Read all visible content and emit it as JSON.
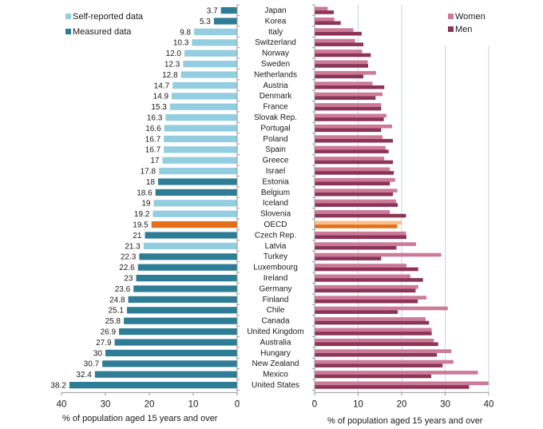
{
  "chart_data": [
    {
      "type": "bar",
      "orientation": "horizontal",
      "direction": "right-to-left",
      "title": "",
      "xlabel": "% of population aged 15 years and over",
      "ylabel": "",
      "xlim": [
        0,
        40
      ],
      "xticks": [
        "40",
        "30",
        "20",
        "10",
        "0"
      ],
      "legend": {
        "position": "top-left",
        "entries": [
          {
            "key": "self",
            "label": "Self-reported data",
            "color": "#92cde0"
          },
          {
            "key": "measured",
            "label": "Measured data",
            "color": "#2e7d96"
          }
        ]
      },
      "highlight_color": "#e56f17",
      "categories": [
        "Japan",
        "Korea",
        "Italy",
        "Switzerland",
        "Norway",
        "Sweden",
        "Netherlands",
        "Austria",
        "Denmark",
        "France",
        "Slovak Rep.",
        "Portugal",
        "Poland",
        "Spain",
        "Greece",
        "Israel",
        "Estonia",
        "Belgium",
        "Iceland",
        "Slovenia",
        "OECD",
        "Czech Rep.",
        "Latvia",
        "Turkey",
        "Luxembourg",
        "Ireland",
        "Germany",
        "Finland",
        "Chile",
        "Canada",
        "United Kingdom",
        "Australia",
        "Hungary",
        "New Zealand",
        "Mexico",
        "United States"
      ],
      "values": [
        3.7,
        5.3,
        9.8,
        10.3,
        12.0,
        12.3,
        12.8,
        14.7,
        14.9,
        15.3,
        16.3,
        16.6,
        16.7,
        16.7,
        17,
        17.8,
        18,
        18.6,
        19,
        19.2,
        19.5,
        21,
        21.3,
        22.3,
        22.6,
        23,
        23.6,
        24.8,
        25.1,
        25.8,
        26.9,
        27.9,
        30,
        30.7,
        32.4,
        38.2
      ],
      "value_labels": [
        "3.7",
        "5.3",
        "9.8",
        "10.3",
        "12.0",
        "12.3",
        "12.8",
        "14.7",
        "14.9",
        "15.3",
        "16.3",
        "16.6",
        "16.7",
        "16.7",
        "17",
        "17.8",
        "18",
        "18.6",
        "19",
        "19.2",
        "19.5",
        "21",
        "21.3",
        "22.3",
        "22.6",
        "23",
        "23.6",
        "24.8",
        "25.1",
        "25.8",
        "26.9",
        "27.9",
        "30",
        "30.7",
        "32.4",
        "38.2"
      ],
      "data_type": [
        "measured",
        "measured",
        "self",
        "self",
        "self",
        "self",
        "self",
        "self",
        "self",
        "self",
        "self",
        "self",
        "self",
        "self",
        "self",
        "self",
        "measured",
        "measured",
        "self",
        "self",
        "oecd",
        "measured",
        "self",
        "measured",
        "measured",
        "measured",
        "measured",
        "measured",
        "measured",
        "measured",
        "measured",
        "measured",
        "measured",
        "measured",
        "measured",
        "measured"
      ]
    },
    {
      "type": "bar",
      "orientation": "horizontal",
      "title": "",
      "xlabel": "% of population aged 15 years and over",
      "ylabel": "",
      "xlim": [
        0,
        40
      ],
      "xticks": [
        "0",
        "10",
        "20",
        "30",
        "40"
      ],
      "grid": true,
      "legend": {
        "position": "top-right",
        "entries": [
          {
            "key": "women",
            "label": "Women",
            "color": "#cc7a98"
          },
          {
            "key": "men",
            "label": "Men",
            "color": "#8b3457"
          }
        ]
      },
      "highlight_colors": {
        "women": "#f9c08d",
        "men": "#e56f17"
      },
      "categories": [
        "Japan",
        "Korea",
        "Italy",
        "Switzerland",
        "Norway",
        "Sweden",
        "Netherlands",
        "Austria",
        "Denmark",
        "France",
        "Slovak Rep.",
        "Portugal",
        "Poland",
        "Spain",
        "Greece",
        "Israel",
        "Estonia",
        "Belgium",
        "Iceland",
        "Slovenia",
        "OECD",
        "Czech Rep.",
        "Latvia",
        "Turkey",
        "Luxembourg",
        "Ireland",
        "Germany",
        "Finland",
        "Chile",
        "Canada",
        "United Kingdom",
        "Australia",
        "Hungary",
        "New Zealand",
        "Mexico",
        "United States"
      ],
      "series": [
        {
          "name": "Women",
          "values": [
            3.0,
            4.5,
            8.9,
            9.3,
            10.9,
            12.2,
            14.1,
            13.3,
            15.6,
            15.3,
            16.5,
            17.8,
            15.6,
            16.3,
            16.0,
            17.3,
            18.5,
            19.0,
            18.7,
            17.3,
            20.0,
            21.0,
            23.3,
            29.1,
            21.1,
            22.0,
            23.8,
            25.7,
            30.6,
            25.5,
            26.9,
            27.4,
            31.4,
            31.9,
            37.5,
            40.0
          ]
        },
        {
          "name": "Men",
          "values": [
            4.4,
            6.0,
            10.8,
            11.2,
            12.9,
            12.3,
            11.2,
            16.0,
            14.0,
            15.3,
            15.9,
            15.3,
            18.0,
            17.0,
            18.0,
            18.2,
            17.3,
            18.0,
            19.1,
            21.0,
            19.0,
            21.1,
            18.8,
            15.3,
            23.8,
            24.9,
            23.2,
            23.7,
            19.1,
            26.3,
            26.9,
            28.4,
            28.1,
            29.4,
            26.8,
            35.5
          ]
        }
      ]
    }
  ]
}
